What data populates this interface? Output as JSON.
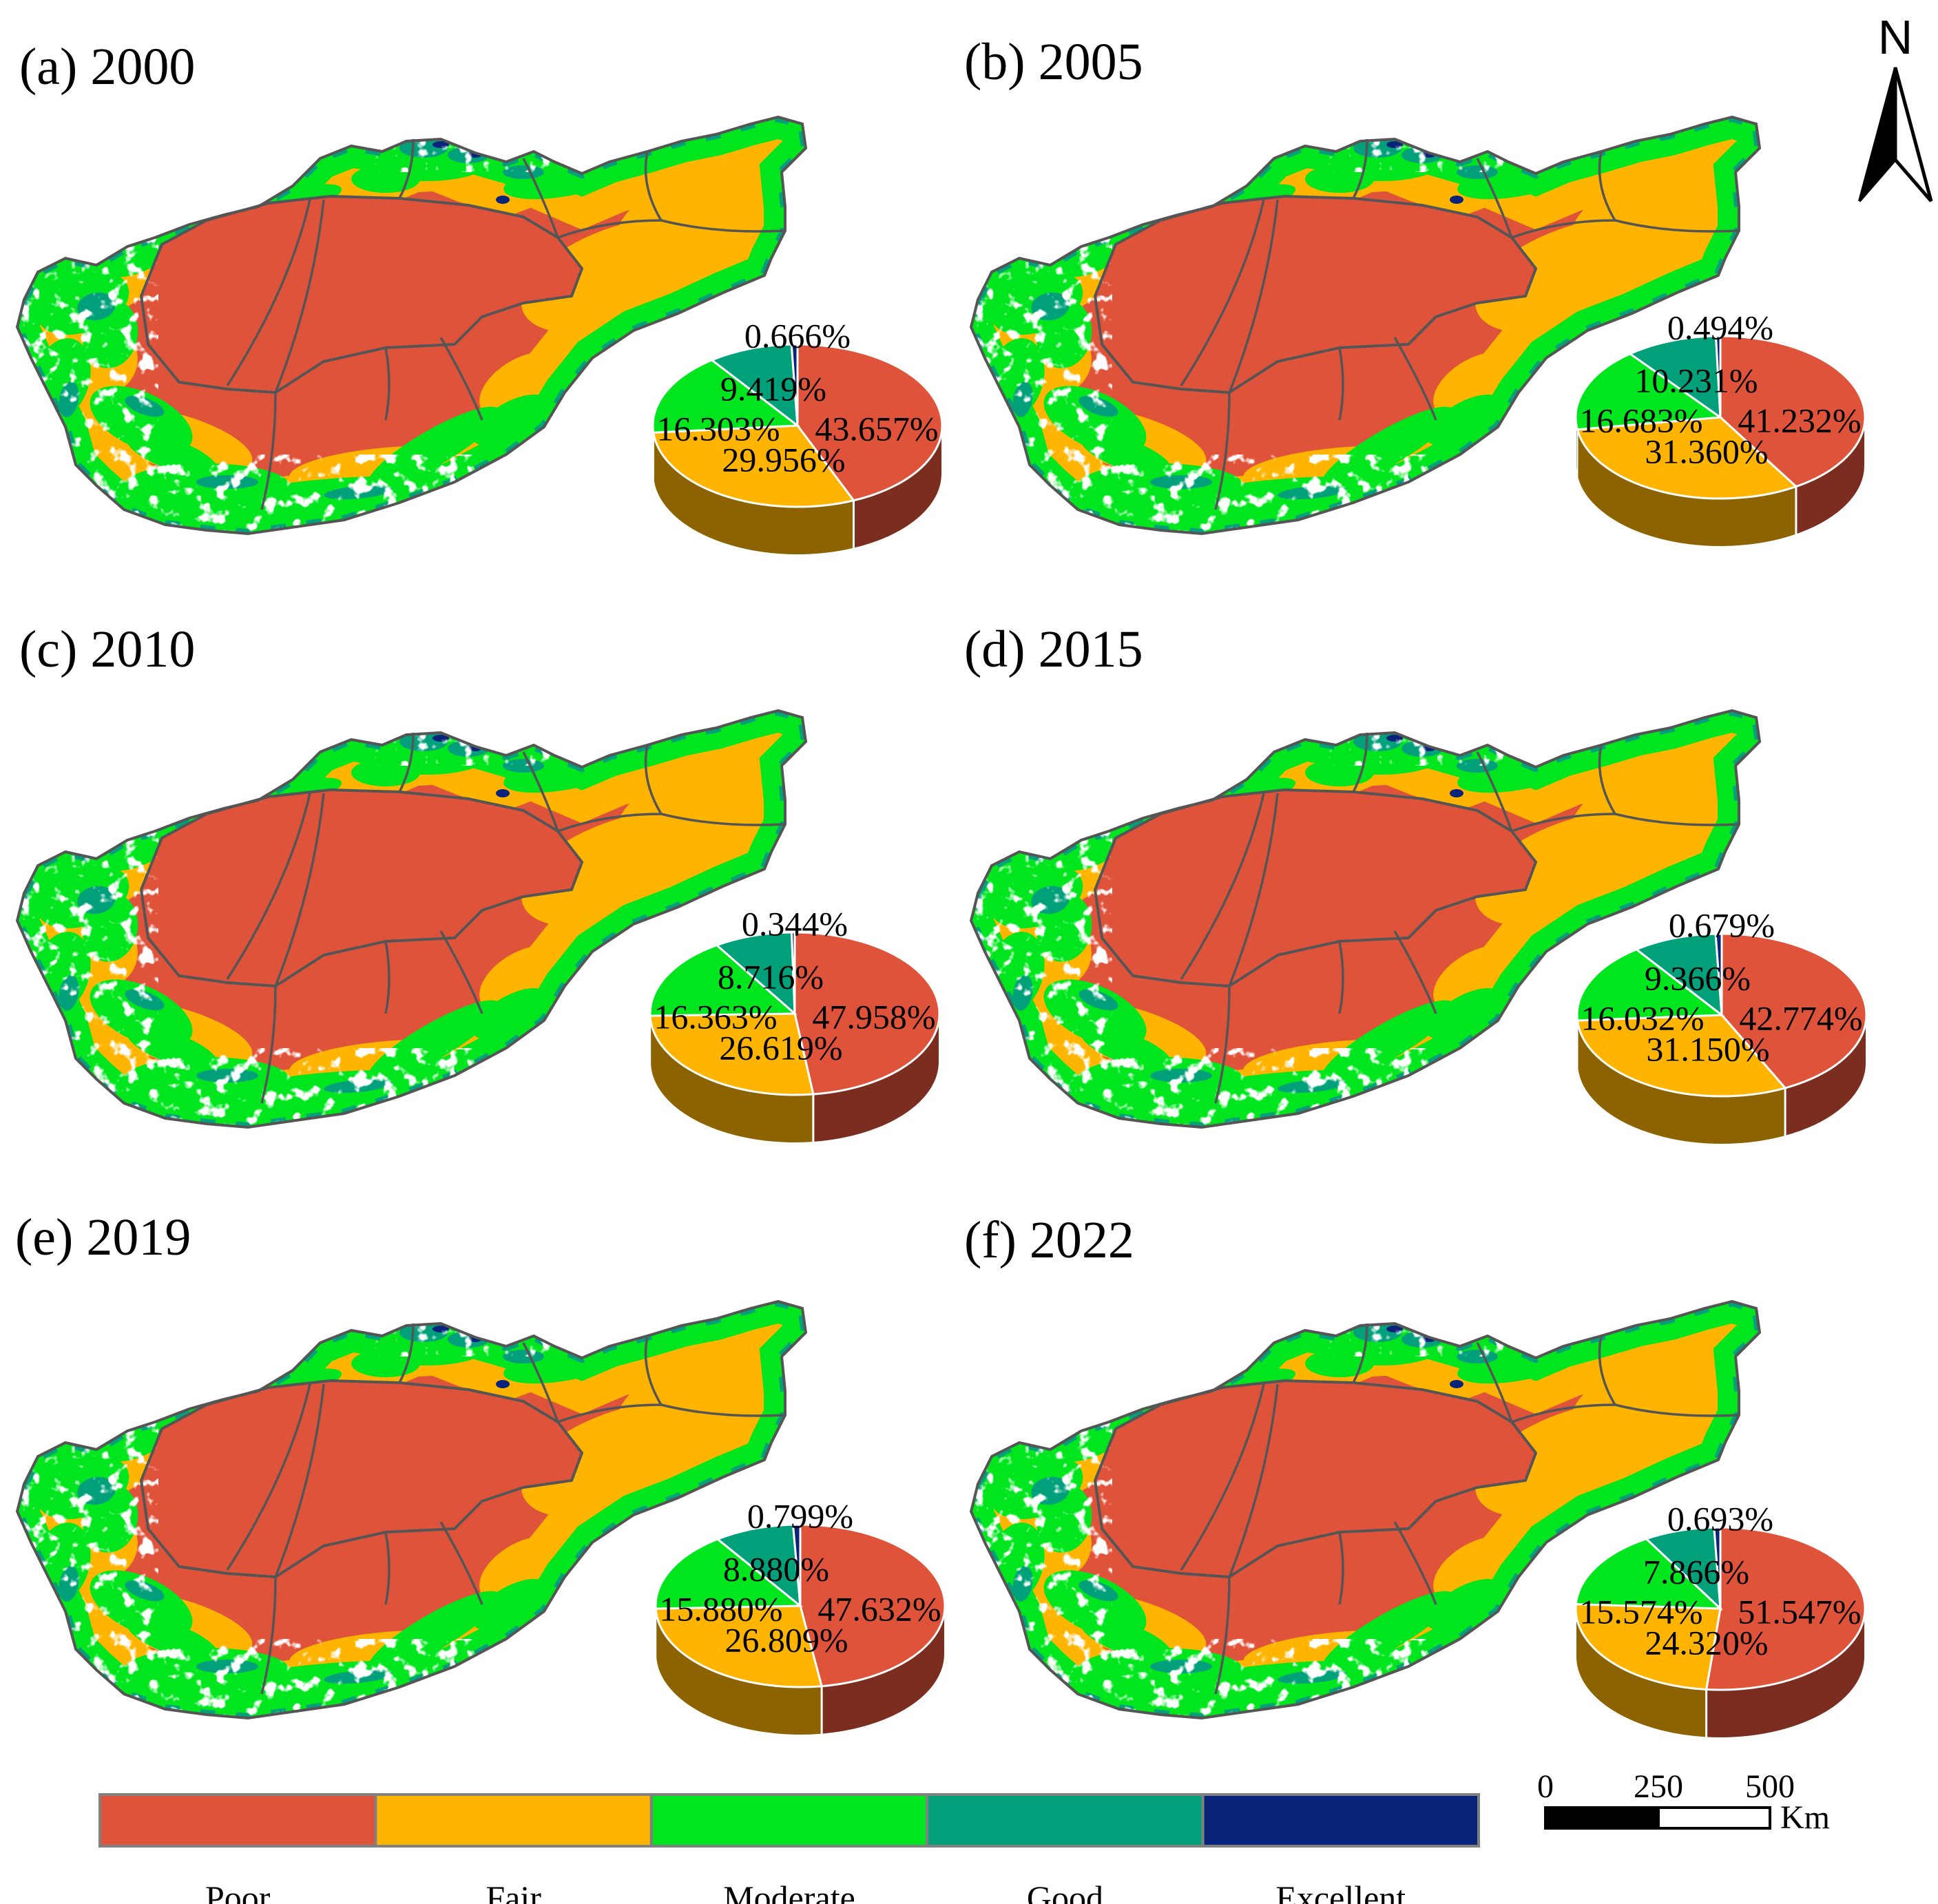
{
  "colors": {
    "poor": "#e0533b",
    "fair": "#ffb400",
    "moderate": "#00e61e",
    "good": "#00a07a",
    "excellent": "#07237a",
    "white": "#ffffff",
    "boundary": "#555555"
  },
  "compass": {
    "label": "N"
  },
  "legend": {
    "classes": [
      {
        "key": "poor",
        "label": "Poor"
      },
      {
        "key": "fair",
        "label": "Fair"
      },
      {
        "key": "moderate",
        "label": "Moderate"
      },
      {
        "key": "good",
        "label": "Good"
      },
      {
        "key": "excellent",
        "label": "Excellent"
      }
    ]
  },
  "scalebar": {
    "ticks": [
      "0",
      "250",
      "500"
    ],
    "unit": "Km"
  },
  "chart_data": [
    {
      "type": "pie",
      "title": "(a) 2000",
      "categories": [
        "Poor",
        "Fair",
        "Moderate",
        "Good",
        "Excellent"
      ],
      "values": [
        43.657,
        29.956,
        16.303,
        9.419,
        0.666
      ],
      "labels": [
        "43.657%",
        "29.956%",
        "16.303%",
        "9.419%",
        "0.666%"
      ]
    },
    {
      "type": "pie",
      "title": "(b) 2005",
      "categories": [
        "Poor",
        "Fair",
        "Moderate",
        "Good",
        "Excellent"
      ],
      "values": [
        41.232,
        31.36,
        16.683,
        10.231,
        0.494
      ],
      "labels": [
        "41.232%",
        "31.360%",
        "16.683%",
        "10.231%",
        "0.494%"
      ]
    },
    {
      "type": "pie",
      "title": "(c) 2010",
      "categories": [
        "Poor",
        "Fair",
        "Moderate",
        "Good",
        "Excellent"
      ],
      "values": [
        47.958,
        26.619,
        16.363,
        8.716,
        0.344
      ],
      "labels": [
        "47.958%",
        "26.619%",
        "16.363%",
        "8.716%",
        "0.344%"
      ]
    },
    {
      "type": "pie",
      "title": "(d) 2015",
      "categories": [
        "Poor",
        "Fair",
        "Moderate",
        "Good",
        "Excellent"
      ],
      "values": [
        42.774,
        31.15,
        16.032,
        9.366,
        0.679
      ],
      "labels": [
        "42.774%",
        "31.150%",
        "16.032%",
        "9.366%",
        "0.679%"
      ]
    },
    {
      "type": "pie",
      "title": "(e) 2019",
      "categories": [
        "Poor",
        "Fair",
        "Moderate",
        "Good",
        "Excellent"
      ],
      "values": [
        47.632,
        26.809,
        15.88,
        8.88,
        0.799
      ],
      "labels": [
        "47.632%",
        "26.809%",
        "15.880%",
        "8.880%",
        "0.799%"
      ]
    },
    {
      "type": "pie",
      "title": "(f) 2022",
      "categories": [
        "Poor",
        "Fair",
        "Moderate",
        "Good",
        "Excellent"
      ],
      "values": [
        51.547,
        24.32,
        15.574,
        7.866,
        0.693
      ],
      "labels": [
        "51.547%",
        "24.320%",
        "15.574%",
        "7.866%",
        "0.693%"
      ]
    }
  ]
}
